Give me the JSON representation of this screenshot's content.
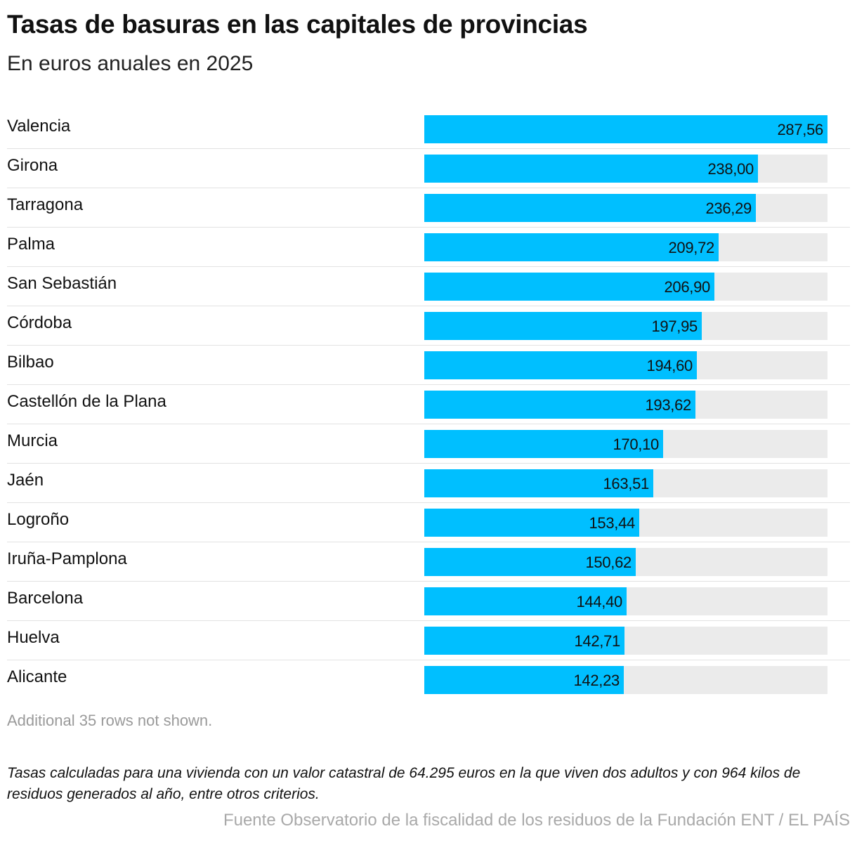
{
  "title": "Tasas de basuras en las capitales de provincias",
  "subtitle": "En euros anuales en 2025",
  "chart_data": {
    "type": "bar",
    "orientation": "horizontal",
    "categories": [
      "Valencia",
      "Girona",
      "Tarragona",
      "Palma",
      "San Sebastián",
      "Córdoba",
      "Bilbao",
      "Castellón de la Plana",
      "Murcia",
      "Jaén",
      "Logroño",
      "Iruña-Pamplona",
      "Barcelona",
      "Huelva",
      "Alicante"
    ],
    "values": [
      287.56,
      238.0,
      236.29,
      209.72,
      206.9,
      197.95,
      194.6,
      193.62,
      170.1,
      163.51,
      153.44,
      150.62,
      144.4,
      142.71,
      142.23
    ],
    "value_labels": [
      "287,56",
      "238,00",
      "236,29",
      "209,72",
      "206,90",
      "197,95",
      "194,60",
      "193,62",
      "170,10",
      "163,51",
      "153,44",
      "150,62",
      "144,40",
      "142,71",
      "142,23"
    ],
    "xlim": [
      0,
      287.56
    ],
    "bar_color": "#00bfff",
    "track_color": "#ebebeb"
  },
  "more_rows_text": "Additional 35 rows not shown.",
  "note": "Tasas calculadas para una vivienda con un valor catastral de 64.295 euros en la que viven dos adultos y con 964 kilos de residuos generados al año, entre otros criterios.",
  "source": "Fuente Observatorio de la fiscalidad de los residuos de la Fundación ENT / EL PAÍS"
}
